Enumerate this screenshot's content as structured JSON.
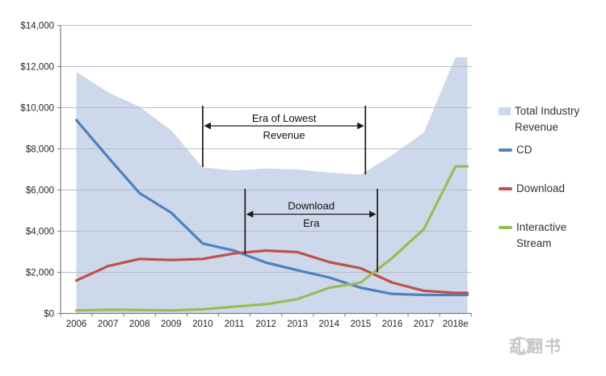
{
  "chart_data": {
    "type": "area-line-combo",
    "title": "",
    "categories": [
      "2006",
      "2007",
      "2008",
      "2009",
      "2010",
      "2011",
      "2012",
      "2013",
      "2014",
      "2015",
      "2016",
      "2017",
      "2018e"
    ],
    "series": [
      {
        "name": "Total Industry Revenue",
        "kind": "area",
        "color": "#cdd9ea",
        "values": [
          11750,
          10750,
          10050,
          8900,
          7100,
          6950,
          7050,
          7000,
          6850,
          6750,
          7700,
          8800,
          12450
        ]
      },
      {
        "name": "CD",
        "kind": "line",
        "color": "#4f81bd",
        "values": [
          9400,
          7600,
          5850,
          4900,
          3400,
          3050,
          2475,
          2100,
          1750,
          1250,
          950,
          900,
          900
        ]
      },
      {
        "name": "Download",
        "kind": "line",
        "color": "#c0504d",
        "values": [
          1600,
          2300,
          2650,
          2600,
          2650,
          2920,
          3060,
          2980,
          2500,
          2200,
          1500,
          1100,
          1000
        ]
      },
      {
        "name": "Interactive Stream",
        "kind": "line",
        "color": "#9bbb59",
        "values": [
          150,
          180,
          170,
          150,
          200,
          330,
          450,
          700,
          1250,
          1500,
          2700,
          4100,
          7150
        ]
      }
    ],
    "y_axis": {
      "min": 0,
      "max": 14000,
      "tick_step": 2000,
      "ticks": [
        {
          "value": 0,
          "label": "$0"
        },
        {
          "value": 2000,
          "label": "$2,000"
        },
        {
          "value": 4000,
          "label": "$4,000"
        },
        {
          "value": 6000,
          "label": "$6,000"
        },
        {
          "value": 8000,
          "label": "$8,000"
        },
        {
          "value": 10000,
          "label": "$10,000"
        },
        {
          "value": 12000,
          "label": "$12,000"
        },
        {
          "value": 14000,
          "label": "$14,000"
        }
      ]
    },
    "grid": true,
    "legend_position": "right",
    "annotations": [
      {
        "id": "era-of-lowest-revenue",
        "text_lines": [
          "Era of Lowest",
          "Revenue"
        ],
        "from_year_index": 4.0,
        "to_year_index": 9.15
      },
      {
        "id": "download-era",
        "text_lines": [
          "Download",
          "Era"
        ],
        "from_year_index": 5.34,
        "to_year_index": 9.53
      }
    ]
  },
  "watermark": {
    "text": "乱翻书"
  }
}
